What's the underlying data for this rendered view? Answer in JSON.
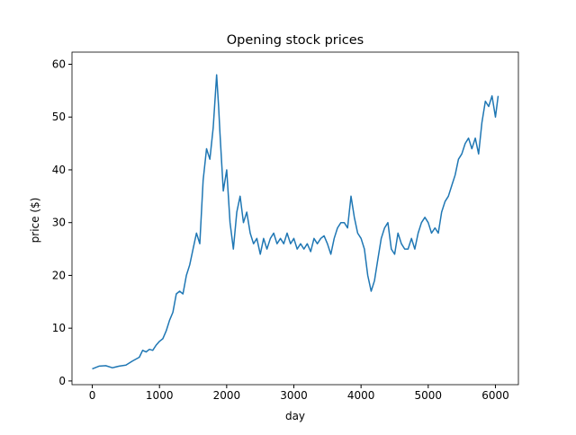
{
  "chart_data": {
    "type": "line",
    "title": "Opening stock prices",
    "x_label": "day",
    "y_label": "price ($)",
    "series": [
      {
        "color": "#1f77b4",
        "x": [
          0,
          100,
          200,
          300,
          400,
          500,
          600,
          700,
          750,
          800,
          850,
          900,
          950,
          1000,
          1050,
          1100,
          1150,
          1200,
          1250,
          1300,
          1350,
          1400,
          1450,
          1500,
          1550,
          1600,
          1650,
          1700,
          1750,
          1800,
          1850,
          1880,
          1900,
          1950,
          2000,
          2050,
          2100,
          2150,
          2200,
          2250,
          2300,
          2350,
          2400,
          2450,
          2500,
          2550,
          2600,
          2650,
          2700,
          2750,
          2800,
          2850,
          2900,
          2950,
          3000,
          3050,
          3100,
          3150,
          3200,
          3250,
          3300,
          3350,
          3400,
          3450,
          3500,
          3550,
          3600,
          3650,
          3700,
          3750,
          3800,
          3850,
          3900,
          3950,
          4000,
          4050,
          4100,
          4150,
          4200,
          4250,
          4300,
          4350,
          4400,
          4450,
          4500,
          4550,
          4600,
          4650,
          4700,
          4750,
          4800,
          4850,
          4900,
          4950,
          5000,
          5050,
          5100,
          5150,
          5200,
          5250,
          5300,
          5350,
          5400,
          5450,
          5500,
          5550,
          5600,
          5650,
          5700,
          5750,
          5800,
          5850,
          5900,
          5950,
          6000,
          6040
        ],
        "values": [
          2.3,
          2.8,
          2.9,
          2.5,
          2.8,
          3.0,
          3.8,
          4.5,
          5.8,
          5.5,
          6.0,
          5.8,
          6.8,
          7.5,
          8.0,
          9.5,
          11.5,
          13,
          16.5,
          17,
          16.5,
          20,
          22,
          25,
          28,
          26,
          38,
          44,
          42,
          48,
          58,
          52,
          47,
          36,
          40,
          30,
          25,
          32,
          35,
          30,
          32,
          28,
          26,
          27,
          24,
          27,
          25,
          27,
          28,
          26,
          27,
          26,
          28,
          26,
          27,
          25,
          26,
          25,
          26,
          24.5,
          27,
          26,
          27,
          27.5,
          26,
          24,
          27,
          29,
          30,
          30,
          29,
          35,
          31,
          28,
          27,
          25,
          20,
          17,
          19,
          23,
          27,
          29,
          30,
          25,
          24,
          28,
          26,
          25,
          25,
          27,
          25,
          28,
          30,
          31,
          30,
          28,
          29,
          28,
          32,
          34,
          35,
          37,
          39,
          42,
          43,
          45,
          46,
          44,
          46,
          43,
          49,
          53,
          52,
          54,
          50,
          54
        ]
      }
    ],
    "xlim": [
      -302,
      6342
    ],
    "ylim": [
      -0.7,
      62.3
    ],
    "xticks": [
      0,
      1000,
      2000,
      3000,
      4000,
      5000,
      6000
    ],
    "yticks": [
      0,
      10,
      20,
      30,
      40,
      50,
      60
    ]
  }
}
